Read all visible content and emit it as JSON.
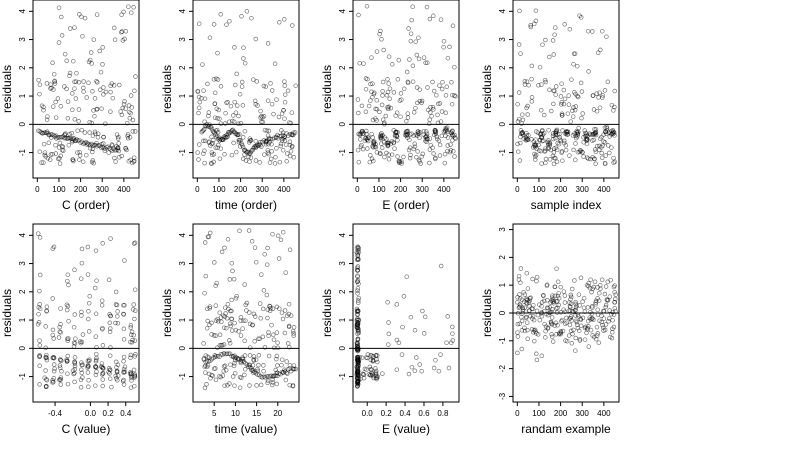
{
  "chart_data": [
    {
      "type": "scatter",
      "xlabel": "C (order)",
      "ylabel": "residuals",
      "xlim": [
        -20,
        470
      ],
      "ylim": [
        -1.9,
        4.4
      ],
      "x_ticks": [
        0,
        100,
        200,
        300,
        400
      ],
      "y_ticks": [
        -1,
        0,
        1,
        2,
        3,
        4
      ],
      "hline": 0,
      "pattern": "order_c",
      "x": [],
      "y": []
    },
    {
      "type": "scatter",
      "xlabel": "time (order)",
      "ylabel": "residuals",
      "xlim": [
        -20,
        470
      ],
      "ylim": [
        -1.9,
        4.4
      ],
      "x_ticks": [
        0,
        100,
        200,
        300,
        400
      ],
      "y_ticks": [
        -1,
        0,
        1,
        2,
        3,
        4
      ],
      "hline": 0,
      "pattern": "order_time",
      "x": [],
      "y": []
    },
    {
      "type": "scatter",
      "xlabel": "E (order)",
      "ylabel": "residuals",
      "xlim": [
        -20,
        470
      ],
      "ylim": [
        -1.9,
        4.4
      ],
      "x_ticks": [
        0,
        100,
        200,
        300,
        400
      ],
      "y_ticks": [
        -1,
        0,
        1,
        2,
        3,
        4
      ],
      "hline": 0,
      "pattern": "order_e",
      "x": [],
      "y": []
    },
    {
      "type": "scatter",
      "xlabel": "sample index",
      "ylabel": "residuals",
      "xlim": [
        -20,
        470
      ],
      "ylim": [
        -1.9,
        4.4
      ],
      "x_ticks": [
        0,
        100,
        200,
        300,
        400
      ],
      "y_ticks": [
        -1,
        0,
        1,
        2,
        3,
        4
      ],
      "hline": 0,
      "pattern": "order_e",
      "x": [],
      "y": []
    },
    {
      "type": "scatter",
      "xlabel": "C (value)",
      "ylabel": "residuals",
      "xlim": [
        -0.65,
        0.55
      ],
      "ylim": [
        -1.9,
        4.4
      ],
      "x_ticks": [
        -0.4,
        0.0,
        0.2,
        0.4
      ],
      "x_tick_labels": [
        "-0.4",
        "0.0",
        "0.2",
        "0.4"
      ],
      "y_ticks": [
        -1,
        0,
        1,
        2,
        3,
        4
      ],
      "hline": 0,
      "pattern": "value_c",
      "x": [],
      "y": []
    },
    {
      "type": "scatter",
      "xlabel": "time (value)",
      "ylabel": "residuals",
      "xlim": [
        0,
        25
      ],
      "ylim": [
        -1.9,
        4.4
      ],
      "x_ticks": [
        5,
        10,
        15,
        20
      ],
      "y_ticks": [
        -1,
        0,
        1,
        2,
        3,
        4
      ],
      "hline": 0,
      "pattern": "value_time",
      "x": [],
      "y": []
    },
    {
      "type": "scatter",
      "xlabel": "E (value)",
      "ylabel": "residuals",
      "xlim": [
        -0.15,
        0.97
      ],
      "ylim": [
        -1.9,
        4.4
      ],
      "x_ticks": [
        0.0,
        0.2,
        0.4,
        0.6,
        0.8
      ],
      "x_tick_labels": [
        "0.0",
        "0.2",
        "0.4",
        "0.6",
        "0.8"
      ],
      "y_ticks": [
        -1,
        0,
        1,
        2,
        3,
        4
      ],
      "hline": 0,
      "pattern": "value_e",
      "x": [],
      "y": []
    },
    {
      "type": "scatter",
      "xlabel": "randam example",
      "ylabel": "residuals",
      "xlim": [
        -20,
        470
      ],
      "ylim": [
        -3.2,
        3.2
      ],
      "x_ticks": [
        0,
        100,
        200,
        300,
        400
      ],
      "y_ticks": [
        -3,
        -2,
        -1,
        0,
        1,
        2,
        3
      ],
      "hline": 0,
      "pattern": "random",
      "x": [],
      "y": []
    }
  ]
}
